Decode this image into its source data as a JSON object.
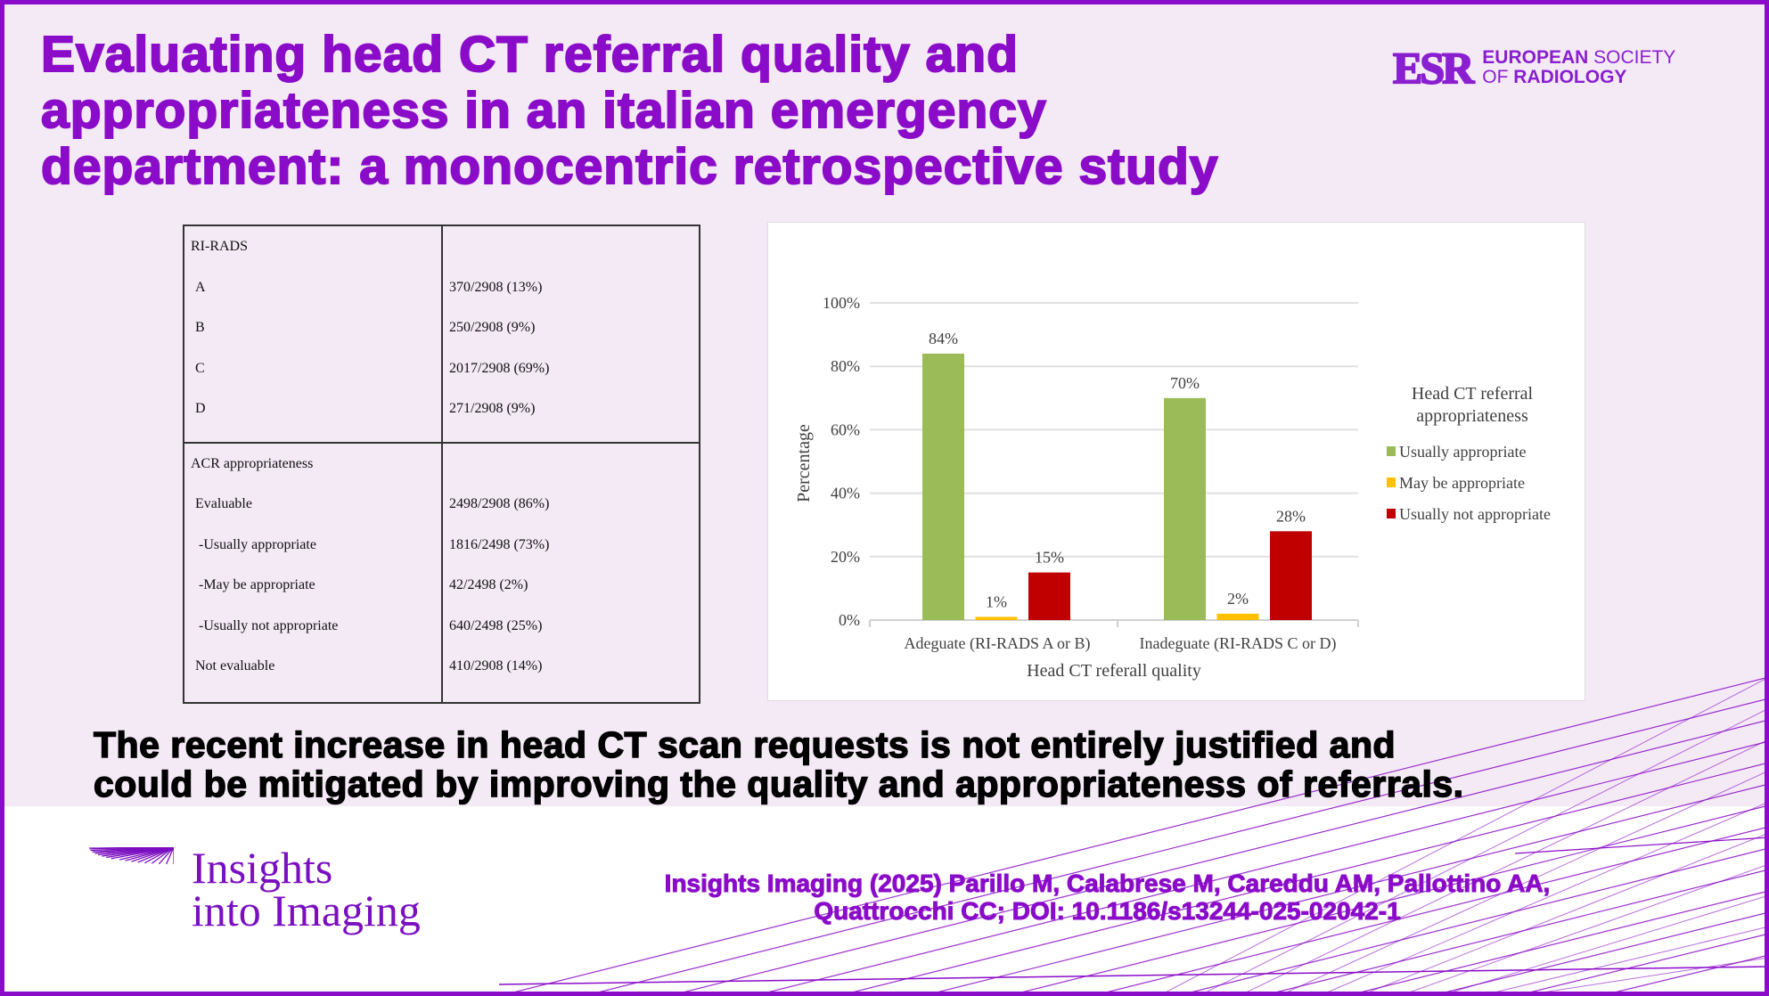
{
  "title": [
    "Evaluating head CT referral quality and",
    "appropriateness in an italian emergency",
    "department: a monocentric retrospective study"
  ],
  "logo": {
    "mark": "ESR",
    "line1_bold": "EUROPEAN",
    "line1_rest": " SOCIETY",
    "line2_light": "OF ",
    "line2_bold": "RADIOLOGY"
  },
  "table": {
    "sections": [
      {
        "header": "RI-RADS",
        "rows": [
          [
            "A",
            "370/2908 (13%)"
          ],
          [
            "B",
            "250/2908 (9%)"
          ],
          [
            "C",
            "2017/2908 (69%)"
          ],
          [
            "D",
            "271/2908 (9%)"
          ]
        ]
      },
      {
        "header": "ACR appropriateness",
        "rows": [
          [
            "Evaluable",
            "2498/2908 (86%)"
          ],
          [
            " -Usually appropriate",
            "1816/2498 (73%)"
          ],
          [
            " -May be appropriate",
            "42/2498 (2%)"
          ],
          [
            " -Usually not appropriate",
            "640/2498 (25%)"
          ],
          [
            "Not evaluable",
            "410/2908 (14%)"
          ]
        ]
      }
    ]
  },
  "chart_data": {
    "type": "bar",
    "categories": [
      "Adeguate (RI-RADS A or B)",
      "Inadeguate (RI-RADS C or D)"
    ],
    "series": [
      {
        "name": "Usually appropriate",
        "values": [
          84,
          70
        ],
        "color": "#9bbb59"
      },
      {
        "name": "May be appropriate",
        "values": [
          1,
          2
        ],
        "color": "#ffc000"
      },
      {
        "name": "Usually not appropriate",
        "values": [
          15,
          28
        ],
        "color": "#c00000"
      }
    ],
    "data_labels": [
      [
        "84%",
        "70%"
      ],
      [
        "1%",
        "2%"
      ],
      [
        "15%",
        "28%"
      ]
    ],
    "yticks": [
      "0%",
      "20%",
      "40%",
      "60%",
      "80%",
      "100%"
    ],
    "ylim": [
      0,
      100
    ],
    "xlabel": "Head CT referall quality",
    "ylabel": "Percentage",
    "legend_title": [
      "Head CT referral",
      "appropriateness"
    ],
    "legend_position": "right",
    "grid": true
  },
  "conclusion": [
    "The recent increase in head CT scan requests is not entirely justified and",
    "could be mitigated by improving the quality and appropriateness of referrals."
  ],
  "journal": {
    "line1": "Insights",
    "line2": "into Imaging"
  },
  "citation": [
    "Insights Imaging (2025) Parillo M, Calabrese M, Careddu AM, Pallottino AA,",
    "Quattrocchi CC; DOI: 10.1186/s13244-025-02042-1"
  ],
  "colors": {
    "brand": "#8a0cc8",
    "background": "#f4eaf6"
  }
}
